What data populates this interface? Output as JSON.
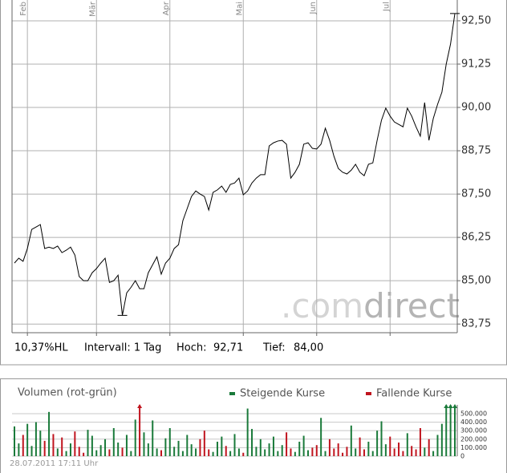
{
  "chart_data": [
    {
      "type": "line",
      "color": "#000000",
      "categories": [
        null,
        null,
        null,
        "Feb",
        null,
        null,
        null,
        null,
        null,
        null,
        null,
        null,
        null,
        null,
        null,
        null,
        null,
        null,
        null,
        "Mär",
        null,
        null,
        null,
        null,
        null,
        null,
        null,
        null,
        null,
        null,
        null,
        null,
        null,
        null,
        null,
        null,
        "Apr",
        null,
        null,
        null,
        null,
        null,
        null,
        null,
        null,
        null,
        null,
        null,
        null,
        null,
        null,
        null,
        null,
        "Mai",
        null,
        null,
        null,
        null,
        null,
        null,
        null,
        null,
        null,
        null,
        null,
        null,
        null,
        null,
        null,
        null,
        "Jun",
        null,
        null,
        null,
        null,
        null,
        null,
        null,
        null,
        null,
        null,
        null,
        null,
        null,
        null,
        null,
        null,
        "Jul",
        null,
        null,
        null,
        null,
        null,
        null,
        null,
        null,
        null,
        null,
        null,
        null,
        null,
        null,
        null
      ],
      "values": [
        85.51,
        85.65,
        85.56,
        85.93,
        86.48,
        86.55,
        86.62,
        85.93,
        85.97,
        85.93,
        86.0,
        85.81,
        85.88,
        85.97,
        85.74,
        85.12,
        85.0,
        85.0,
        85.23,
        85.35,
        85.51,
        85.65,
        84.95,
        85.0,
        85.16,
        84.0,
        84.65,
        84.81,
        85.0,
        84.77,
        84.77,
        85.23,
        85.46,
        85.69,
        85.19,
        85.51,
        85.65,
        85.93,
        86.04,
        86.73,
        87.08,
        87.43,
        87.59,
        87.5,
        87.43,
        87.04,
        87.55,
        87.62,
        87.73,
        87.55,
        87.78,
        87.82,
        87.96,
        87.48,
        87.59,
        87.82,
        87.96,
        88.06,
        88.06,
        88.89,
        88.98,
        89.03,
        89.05,
        88.94,
        87.96,
        88.13,
        88.36,
        88.94,
        88.98,
        88.82,
        88.8,
        88.94,
        89.4,
        89.05,
        88.59,
        88.24,
        88.13,
        88.08,
        88.19,
        88.36,
        88.13,
        88.03,
        88.36,
        88.4,
        89.05,
        89.63,
        89.98,
        89.75,
        89.58,
        89.51,
        89.44,
        89.98,
        89.75,
        89.44,
        89.17,
        90.14,
        89.05,
        89.68,
        90.09,
        90.44,
        91.25,
        91.83,
        92.71
      ],
      "ylim": [
        83.5,
        93.1
      ],
      "yticks": [
        {
          "value": 92.5,
          "label": "92,50"
        },
        {
          "value": 91.25,
          "label": "91,25"
        },
        {
          "value": 90,
          "label": "90,00"
        },
        {
          "value": 88.75,
          "label": "88,75"
        },
        {
          "value": 87.5,
          "label": "87,50"
        },
        {
          "value": 86.25,
          "label": "86,25"
        },
        {
          "value": 85,
          "label": "85,00"
        },
        {
          "value": 83.75,
          "label": "83,75"
        }
      ],
      "grid": true,
      "watermark": [
        ".com",
        "direct"
      ],
      "stats": {
        "range": "10,37%HL",
        "interval": "Intervall: 1 Tag",
        "high_label": "Hoch:",
        "high": "92,71",
        "low_label": "Tief:",
        "low": "84,00"
      }
    },
    {
      "type": "bar",
      "title": "Volumen (rot-grün)",
      "legend": [
        {
          "name": "Steigende Kurse",
          "color": "#1a7a3a"
        },
        {
          "name": "Fallende Kurse",
          "color": "#c0141e"
        }
      ],
      "values": [
        350000,
        150000,
        250000,
        380000,
        120000,
        400000,
        300000,
        180000,
        520000,
        260000,
        90000,
        220000,
        60000,
        150000,
        290000,
        110000,
        40000,
        310000,
        240000,
        70000,
        130000,
        200000,
        80000,
        330000,
        160000,
        100000,
        250000,
        60000,
        430000,
        600000,
        280000,
        150000,
        420000,
        90000,
        70000,
        210000,
        330000,
        110000,
        180000,
        60000,
        250000,
        140000,
        90000,
        200000,
        300000,
        80000,
        50000,
        170000,
        230000,
        120000,
        60000,
        260000,
        90000,
        40000,
        560000,
        320000,
        110000,
        200000,
        80000,
        150000,
        230000,
        60000,
        130000,
        280000,
        90000,
        50000,
        170000,
        240000,
        70000,
        100000,
        130000,
        450000,
        60000,
        200000,
        90000,
        150000,
        40000,
        110000,
        360000,
        90000,
        220000,
        80000,
        170000,
        60000,
        300000,
        410000,
        140000,
        230000,
        90000,
        160000,
        60000,
        270000,
        120000,
        80000,
        330000,
        100000,
        200000,
        60000,
        250000,
        380000,
        600000,
        600000,
        600000
      ],
      "ylim": [
        0,
        575000
      ],
      "yticks": [
        {
          "value": 500000,
          "label": "500.000"
        },
        {
          "value": 400000,
          "label": "400.000"
        },
        {
          "value": 300000,
          "label": "300.000"
        },
        {
          "value": 200000,
          "label": "200.000"
        },
        {
          "value": 100000,
          "label": "100.000"
        },
        0
      ],
      "timestamp": "28.07.2011 17:11 Uhr"
    }
  ]
}
